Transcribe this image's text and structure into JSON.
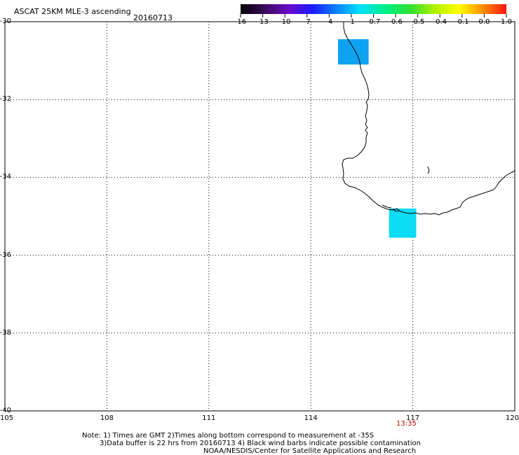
{
  "header": {
    "title": "ASCAT 25KM MLE-3 ascending",
    "date": "20160713"
  },
  "colorbar": {
    "labels": [
      "-16",
      "-13",
      "-10",
      "-7",
      "-4",
      "-1",
      "-0.7",
      "-0.6",
      "-0.5",
      "-0.4",
      "-0.1",
      "0.0",
      "1.0"
    ]
  },
  "axes": {
    "lon_labels": [
      "105",
      "108",
      "111",
      "114",
      "117",
      "120"
    ],
    "lat_labels": [
      "-30",
      "-32",
      "-34",
      "-36",
      "-38",
      "-40"
    ],
    "lon_range": [
      105,
      120
    ],
    "lat_range": [
      -40,
      -30
    ],
    "grid": "dotted"
  },
  "time_marker": "13:35",
  "time_marker_color": "#cc0000",
  "notes": {
    "line1": "Note: 1) Times are GMT 2)Times along bottom correspond to measurement at -35S",
    "line2": "3)Data buffer is 22 hrs from 20160713 4) Black wind barbs indicate possible contamination",
    "line3": "NOAA/NESDIS/Center for Satellite Applications and Research"
  },
  "data_cells": [
    {
      "lon_min": 114.8,
      "lon_max": 115.7,
      "lat_min": -31.1,
      "lat_max": -30.45,
      "color": "#0ea3f2"
    },
    {
      "lon_min": 116.3,
      "lon_max": 117.1,
      "lat_min": -35.55,
      "lat_max": -34.8,
      "color": "#0ddcf5"
    }
  ]
}
